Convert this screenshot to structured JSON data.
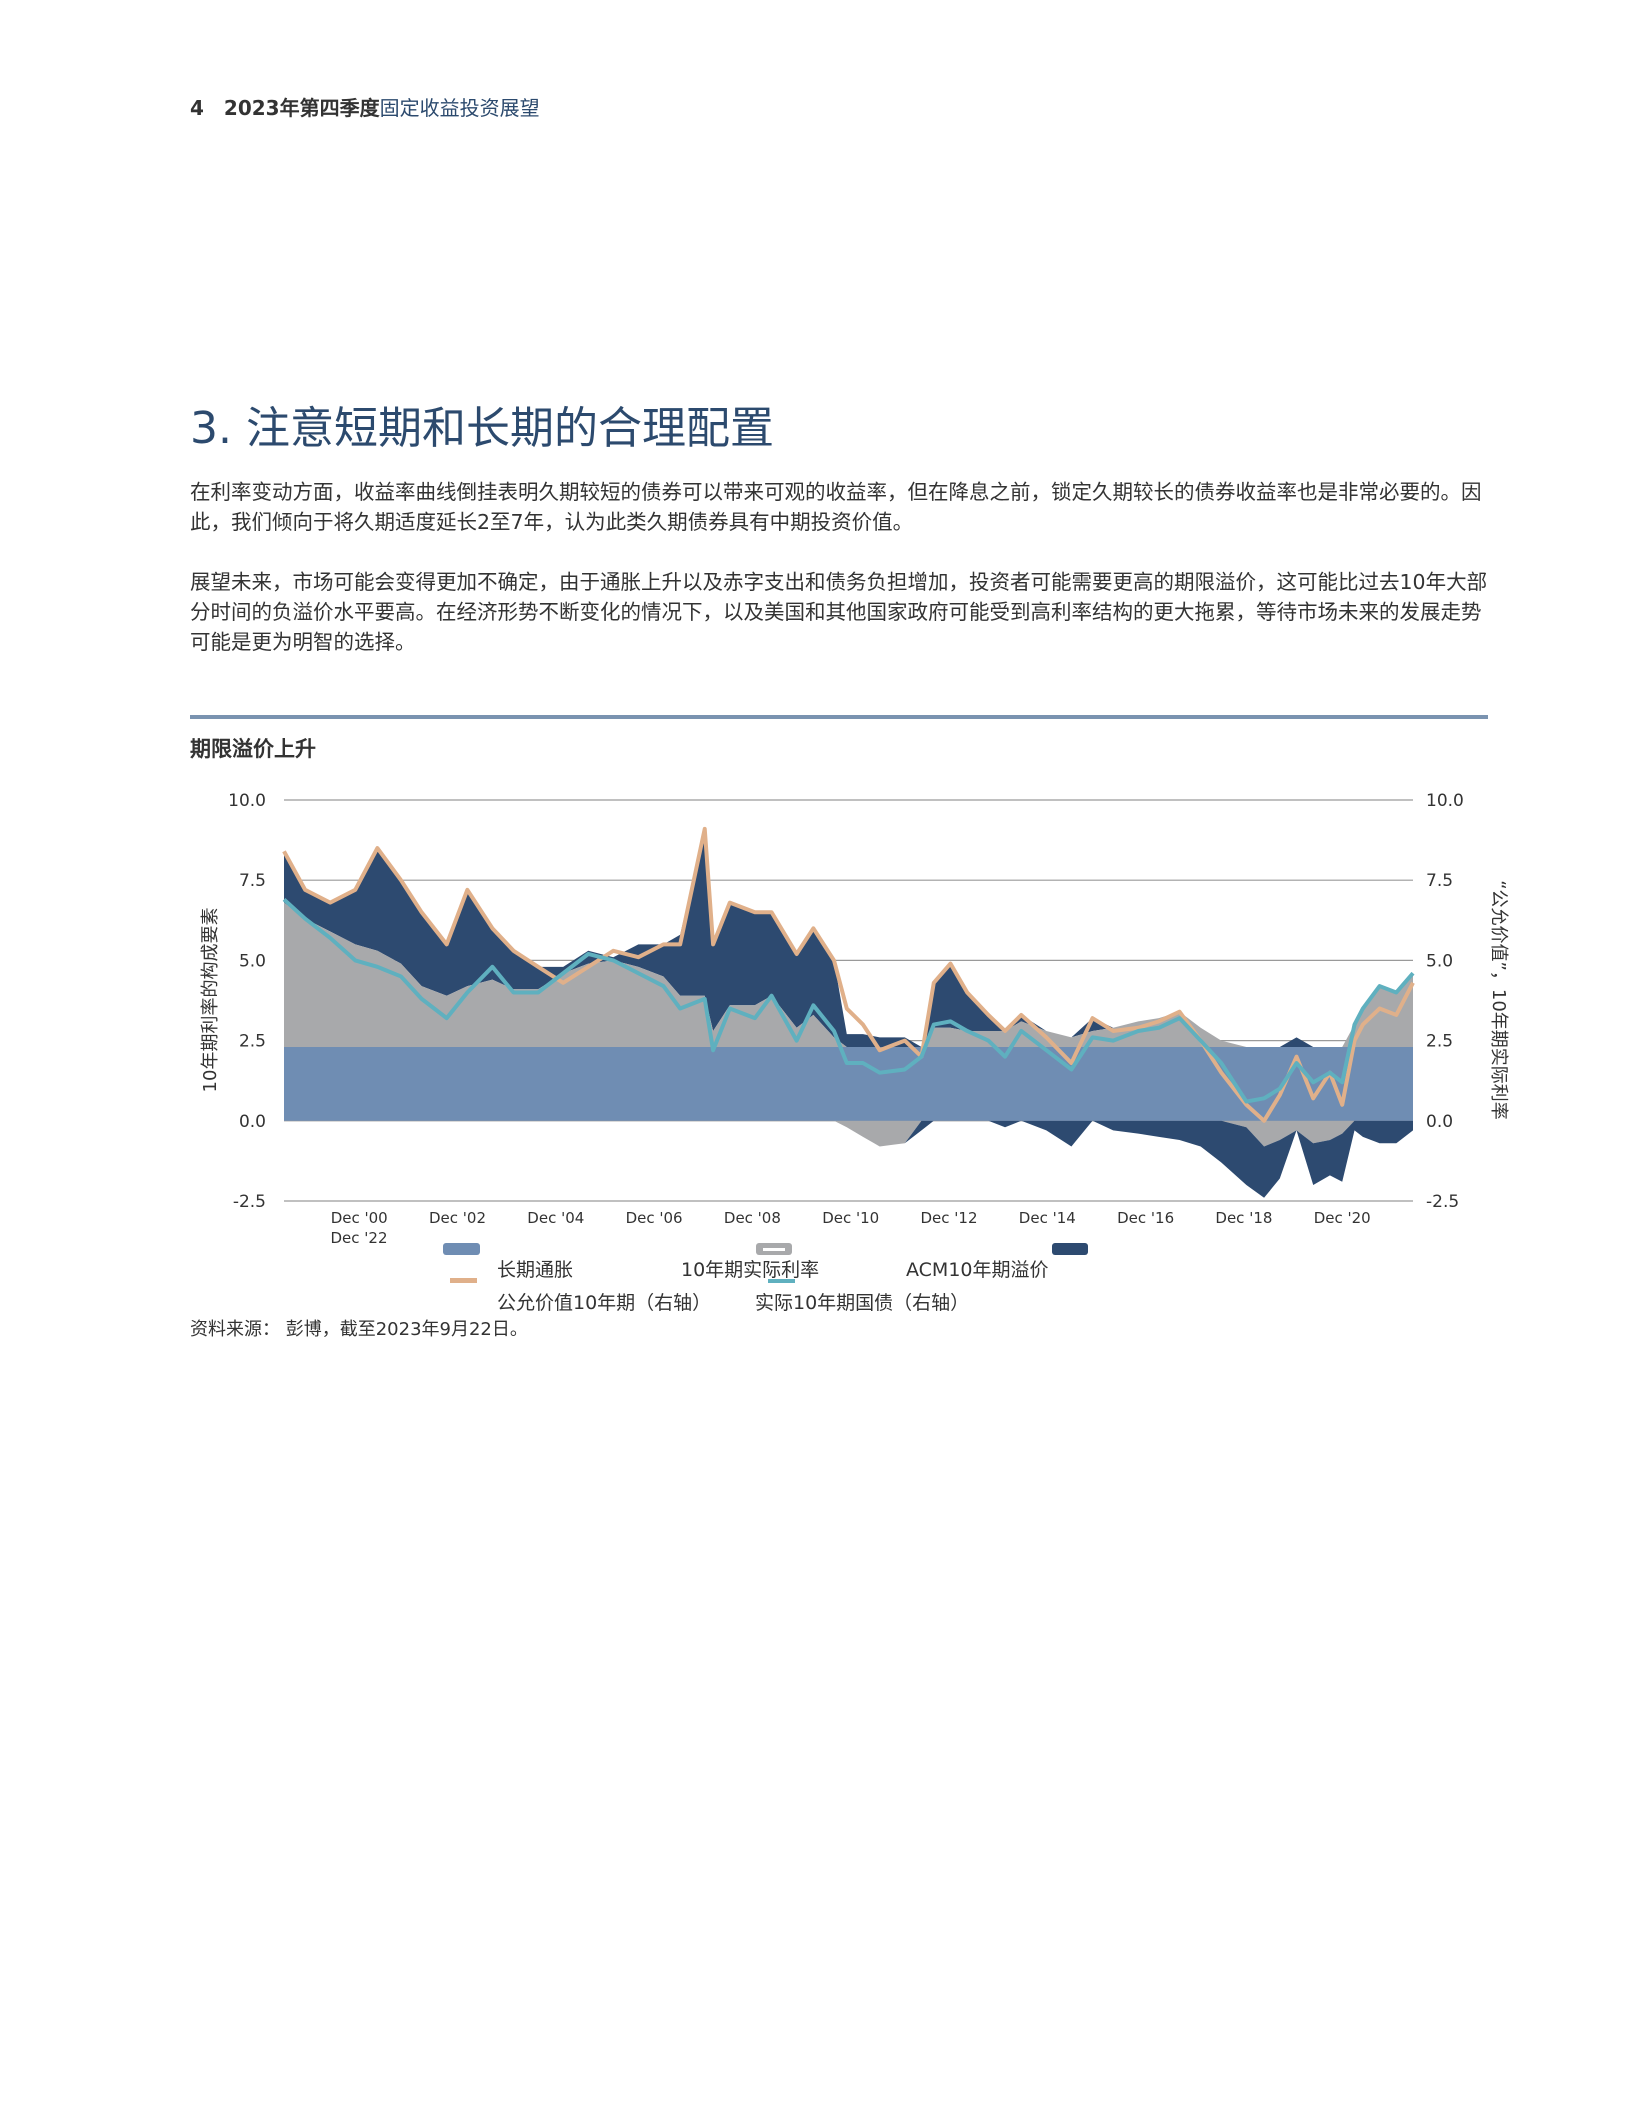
{
  "header": {
    "page_number": "4",
    "bold_title": "2023年第四季度",
    "title": "固定收益投资展望"
  },
  "section_title": "3. 注意短期和长期的合理配置",
  "paragraphs": [
    "在利率变动方面，收益率曲线倒挂表明久期较短的债券可以带来可观的收益率，但在降息之前，锁定久期较长的债券收益率也是非常必要的。因此，我们倾向于将久期适度延长2至7年，认为此类久期债券具有中期投资价值。",
    "展望未来，市场可能会变得更加不确定，由于通胀上升以及赤字支出和债务负担增加，投资者可能需要更高的期限溢价，这可能比过去10年大部分时间的负溢价水平要高。在经济形势不断变化的情况下，以及美国和其他国家政府可能受到高利率结构的更大拖累，等待市场未来的发展走势可能是更为明智的选择。"
  ],
  "source": "资料来源： 彭博，截至2023年9月22日。",
  "chart_data": {
    "type": "area",
    "title": "期限溢价上升",
    "ylabel": "10年期利率的构成要素",
    "ylabel_right": "“公允价值”，10年期实际利率",
    "ylim": [
      -2.5,
      10.0
    ],
    "ylim_right": [
      -2.5,
      10.0
    ],
    "yticks": [
      "10.0",
      "7.5",
      "5.0",
      "2.5",
      "0.0",
      "-2.5"
    ],
    "ytick_values": [
      10.0,
      7.5,
      5.0,
      2.5,
      0.0,
      -2.5
    ],
    "xticks": [
      "Dec '00",
      "Dec '02",
      "Dec '04",
      "Dec '06",
      "Dec '08",
      "Dec '10",
      "Dec '12",
      "Dec '14",
      "Dec '16",
      "Dec '18",
      "Dec '20"
    ],
    "xtick_values": [
      2001,
      2003,
      2005,
      2007,
      2009,
      2011,
      2013,
      2015,
      2017,
      2019,
      2021
    ],
    "xtick_overflow": "Dec '22",
    "xlim": [
      1999.47,
      2022.44
    ],
    "grid": true,
    "legend_position": "bottom",
    "x": [
      1999.47,
      1999.9,
      2000.41,
      2000.92,
      2001.37,
      2001.85,
      2002.27,
      2002.78,
      2003.2,
      2003.71,
      2004.14,
      2004.64,
      2005.15,
      2005.66,
      2006.17,
      2006.68,
      2007.19,
      2007.53,
      2008.03,
      2008.2,
      2008.54,
      2009.05,
      2009.39,
      2009.9,
      2010.24,
      2010.66,
      2010.92,
      2011.25,
      2011.59,
      2012.1,
      2012.44,
      2012.69,
      2013.03,
      2013.37,
      2013.8,
      2014.14,
      2014.47,
      2014.98,
      2015.49,
      2015.92,
      2016.34,
      2016.85,
      2017.27,
      2017.69,
      2018.12,
      2018.54,
      2019.05,
      2019.41,
      2019.73,
      2020.07,
      2020.41,
      2020.75,
      2021.0,
      2021.25,
      2021.42,
      2021.76,
      2022.1,
      2022.44
    ],
    "series": [
      {
        "name": "长期通胀",
        "kind": "area",
        "color": "#6f8db3",
        "values": [
          2.3,
          2.3,
          2.3,
          2.3,
          2.3,
          2.3,
          2.3,
          2.3,
          2.3,
          2.3,
          2.3,
          2.3,
          2.3,
          2.3,
          2.3,
          2.3,
          2.3,
          2.3,
          2.3,
          2.3,
          2.3,
          2.3,
          2.3,
          2.3,
          2.3,
          2.3,
          2.3,
          2.3,
          2.3,
          2.3,
          2.3,
          2.3,
          2.3,
          2.3,
          2.3,
          2.3,
          2.3,
          2.3,
          2.3,
          2.3,
          2.3,
          2.3,
          2.3,
          2.3,
          2.3,
          2.3,
          2.3,
          2.3,
          2.3,
          2.3,
          2.3,
          2.3,
          2.3,
          2.3,
          2.3,
          2.3,
          2.3,
          2.3
        ]
      },
      {
        "name": "10年期实际利率",
        "kind": "area",
        "color": "#a8a9ab",
        "values": [
          4.5,
          4.0,
          3.6,
          3.2,
          3.0,
          2.6,
          1.9,
          1.6,
          1.9,
          2.1,
          1.8,
          1.8,
          2.3,
          2.6,
          2.7,
          2.5,
          2.2,
          1.6,
          1.6,
          0.5,
          1.3,
          1.3,
          1.6,
          0.6,
          1.0,
          0.3,
          -0.2,
          -0.5,
          -0.8,
          -0.7,
          0.0,
          0.6,
          0.6,
          0.5,
          0.5,
          0.5,
          0.8,
          0.5,
          0.3,
          0.5,
          0.6,
          0.8,
          0.9,
          1.1,
          0.6,
          0.2,
          -0.2,
          -0.8,
          -0.6,
          -0.3,
          -0.7,
          -0.6,
          -0.4,
          0.7,
          1.2,
          1.9,
          1.7,
          2.3
        ]
      },
      {
        "name": "ACM10年期溢价",
        "kind": "area",
        "color": "#2d4a70",
        "values": [
          1.6,
          0.9,
          0.9,
          1.7,
          3.2,
          2.6,
          2.3,
          1.6,
          2.9,
          1.6,
          1.2,
          0.7,
          0.2,
          0.4,
          0.1,
          0.7,
          1.0,
          1.9,
          5.2,
          2.7,
          3.2,
          2.9,
          2.6,
          2.3,
          2.7,
          2.4,
          0.4,
          0.4,
          0.3,
          0.3,
          -0.3,
          1.4,
          2.0,
          1.2,
          0.5,
          -0.2,
          0.2,
          -0.3,
          -0.8,
          0.4,
          -0.3,
          -0.4,
          -0.5,
          -0.6,
          -0.8,
          -1.3,
          -1.8,
          -1.6,
          -1.2,
          0.3,
          -1.3,
          -1.1,
          -1.5,
          -0.3,
          -0.5,
          -0.7,
          -0.7,
          -0.3
        ]
      },
      {
        "name": "公允价值10年期（右轴）",
        "kind": "line",
        "color": "#e0b08a",
        "values": [
          8.4,
          7.2,
          6.8,
          7.2,
          8.5,
          7.5,
          6.5,
          5.5,
          7.2,
          6.0,
          5.3,
          4.8,
          4.3,
          4.8,
          5.3,
          5.1,
          5.5,
          5.5,
          9.1,
          5.5,
          6.8,
          6.5,
          6.5,
          5.2,
          6.0,
          5.0,
          3.5,
          3.0,
          2.2,
          2.5,
          2.0,
          4.3,
          4.9,
          4.0,
          3.3,
          2.8,
          3.3,
          2.6,
          1.8,
          3.2,
          2.8,
          2.9,
          3.1,
          3.4,
          2.5,
          1.5,
          0.5,
          0.0,
          0.8,
          2.0,
          0.7,
          1.5,
          0.5,
          2.5,
          3.0,
          3.5,
          3.3,
          4.3
        ]
      },
      {
        "name": "实际10年期国债（右轴）",
        "kind": "line",
        "color": "#5fb0bf",
        "values": [
          6.9,
          6.3,
          5.7,
          5.0,
          4.8,
          4.5,
          3.8,
          3.2,
          4.0,
          4.8,
          4.0,
          4.0,
          4.6,
          5.2,
          5.0,
          4.6,
          4.2,
          3.5,
          3.8,
          2.2,
          3.5,
          3.2,
          3.9,
          2.5,
          3.6,
          2.8,
          1.8,
          1.8,
          1.5,
          1.6,
          2.0,
          3.0,
          3.1,
          2.8,
          2.5,
          2.0,
          2.8,
          2.2,
          1.6,
          2.6,
          2.5,
          2.8,
          2.9,
          3.2,
          2.5,
          1.8,
          0.6,
          0.7,
          1.0,
          1.8,
          1.2,
          1.5,
          1.2,
          3.0,
          3.5,
          4.2,
          4.0,
          4.6
        ]
      }
    ]
  }
}
